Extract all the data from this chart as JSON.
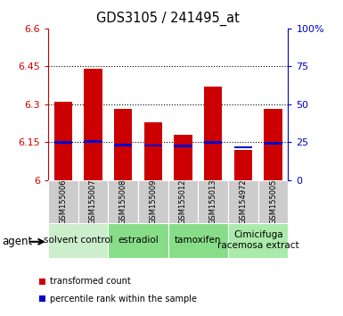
{
  "title": "GDS3105 / 241495_at",
  "samples": [
    "GSM155006",
    "GSM155007",
    "GSM155008",
    "GSM155009",
    "GSM155012",
    "GSM155013",
    "GSM154972",
    "GSM155005"
  ],
  "red_values": [
    6.31,
    6.44,
    6.28,
    6.23,
    6.18,
    6.37,
    6.12,
    6.28
  ],
  "blue_values": [
    6.148,
    6.152,
    6.138,
    6.137,
    6.136,
    6.15,
    6.13,
    6.145
  ],
  "ymin": 6.0,
  "ymax": 6.6,
  "yticks": [
    6.0,
    6.15,
    6.3,
    6.45,
    6.6
  ],
  "ytick_labels": [
    "6",
    "6.15",
    "6.3",
    "6.45",
    "6.6"
  ],
  "right_yticks": [
    0,
    25,
    50,
    75,
    100
  ],
  "right_ytick_labels": [
    "0",
    "25",
    "50",
    "75",
    "100%"
  ],
  "group_info": [
    {
      "start": 0,
      "end": 1,
      "label": "solvent control",
      "color": "#cceecc"
    },
    {
      "start": 2,
      "end": 3,
      "label": "estradiol",
      "color": "#88dd88"
    },
    {
      "start": 4,
      "end": 5,
      "label": "tamoxifen",
      "color": "#88dd88"
    },
    {
      "start": 6,
      "end": 7,
      "label": "Cimicifuga\nracemosa extract",
      "color": "#aaeaaa"
    }
  ],
  "legend_items": [
    {
      "color": "#cc0000",
      "label": "transformed count"
    },
    {
      "color": "#0000cc",
      "label": "percentile rank within the sample"
    }
  ],
  "bar_color": "#cc0000",
  "blue_color": "#0000cc",
  "bar_width": 0.6,
  "left_tick_color": "#cc0000",
  "right_tick_color": "#0000cc",
  "agent_label": "agent",
  "gridline_ticks": [
    6.15,
    6.3,
    6.45
  ],
  "sample_bg_color": "#cccccc",
  "sample_label_fontsize": 6.0,
  "group_label_fontsize": 7.5
}
